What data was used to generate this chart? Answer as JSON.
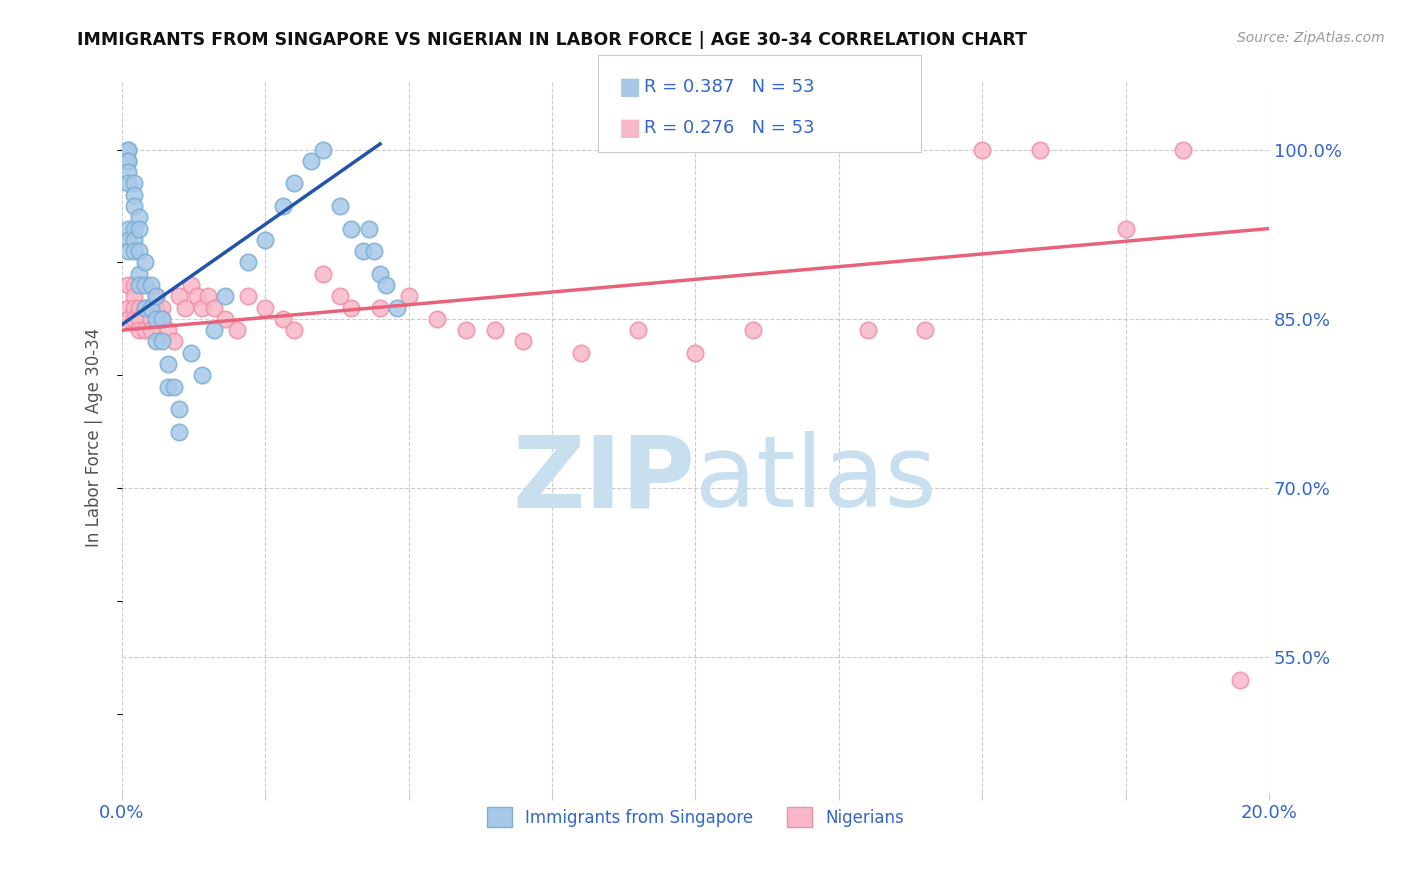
{
  "title": "IMMIGRANTS FROM SINGAPORE VS NIGERIAN IN LABOR FORCE | AGE 30-34 CORRELATION CHART",
  "source": "Source: ZipAtlas.com",
  "ylabel": "In Labor Force | Age 30-34",
  "x_min": 0.0,
  "x_max": 0.2,
  "y_min": 0.43,
  "y_max": 1.06,
  "R_blue": 0.387,
  "N_blue": 53,
  "R_pink": 0.276,
  "N_pink": 53,
  "legend_blue": "Immigrants from Singapore",
  "legend_pink": "Nigerians",
  "blue_scatter_color": "#a8c8e8",
  "blue_edge_color": "#7bafd4",
  "pink_scatter_color": "#f8b8c8",
  "pink_edge_color": "#f090a8",
  "blue_line_color": "#2255aa",
  "pink_line_color": "#e8637a",
  "grid_color": "#cccccc",
  "title_color": "#111111",
  "axis_label_color": "#555555",
  "tick_label_color": "#3366cc",
  "source_color": "#999999",
  "watermark_zip_color": "#c8dff0",
  "watermark_atlas_color": "#c8dff0",
  "sg_x": [
    0.001,
    0.001,
    0.001,
    0.001,
    0.001,
    0.001,
    0.001,
    0.001,
    0.001,
    0.002,
    0.002,
    0.002,
    0.002,
    0.002,
    0.002,
    0.003,
    0.003,
    0.003,
    0.003,
    0.003,
    0.004,
    0.004,
    0.004,
    0.005,
    0.005,
    0.006,
    0.006,
    0.006,
    0.007,
    0.007,
    0.008,
    0.008,
    0.009,
    0.01,
    0.01,
    0.012,
    0.014,
    0.016,
    0.018,
    0.022,
    0.025,
    0.028,
    0.03,
    0.033,
    0.035,
    0.038,
    0.04,
    0.042,
    0.043,
    0.044,
    0.045,
    0.046,
    0.048
  ],
  "sg_y": [
    1.0,
    1.0,
    0.99,
    0.99,
    0.98,
    0.97,
    0.93,
    0.92,
    0.91,
    0.97,
    0.96,
    0.95,
    0.93,
    0.92,
    0.91,
    0.94,
    0.93,
    0.91,
    0.89,
    0.88,
    0.9,
    0.88,
    0.86,
    0.88,
    0.86,
    0.87,
    0.85,
    0.83,
    0.85,
    0.83,
    0.81,
    0.79,
    0.79,
    0.77,
    0.75,
    0.82,
    0.8,
    0.84,
    0.87,
    0.9,
    0.92,
    0.95,
    0.97,
    0.99,
    1.0,
    0.95,
    0.93,
    0.91,
    0.93,
    0.91,
    0.89,
    0.88,
    0.86
  ],
  "ng_x": [
    0.001,
    0.001,
    0.001,
    0.002,
    0.002,
    0.002,
    0.002,
    0.003,
    0.003,
    0.003,
    0.004,
    0.004,
    0.005,
    0.005,
    0.006,
    0.006,
    0.007,
    0.007,
    0.008,
    0.009,
    0.01,
    0.011,
    0.012,
    0.013,
    0.014,
    0.015,
    0.016,
    0.018,
    0.02,
    0.022,
    0.025,
    0.028,
    0.03,
    0.035,
    0.038,
    0.04,
    0.045,
    0.05,
    0.055,
    0.06,
    0.065,
    0.07,
    0.08,
    0.09,
    0.1,
    0.11,
    0.13,
    0.14,
    0.15,
    0.16,
    0.175,
    0.185,
    0.195
  ],
  "ng_y": [
    0.88,
    0.86,
    0.85,
    0.88,
    0.87,
    0.86,
    0.85,
    0.86,
    0.85,
    0.84,
    0.86,
    0.84,
    0.85,
    0.84,
    0.87,
    0.86,
    0.86,
    0.85,
    0.84,
    0.83,
    0.87,
    0.86,
    0.88,
    0.87,
    0.86,
    0.87,
    0.86,
    0.85,
    0.84,
    0.87,
    0.86,
    0.85,
    0.84,
    0.89,
    0.87,
    0.86,
    0.86,
    0.87,
    0.85,
    0.84,
    0.84,
    0.83,
    0.82,
    0.84,
    0.82,
    0.84,
    0.84,
    0.84,
    1.0,
    1.0,
    0.93,
    1.0,
    0.53
  ],
  "blue_trend_x0": 0.0,
  "blue_trend_y0": 0.845,
  "blue_trend_x1": 0.045,
  "blue_trend_y1": 1.005,
  "pink_trend_x0": 0.0,
  "pink_trend_y0": 0.84,
  "pink_trend_x1": 0.2,
  "pink_trend_y1": 0.93
}
